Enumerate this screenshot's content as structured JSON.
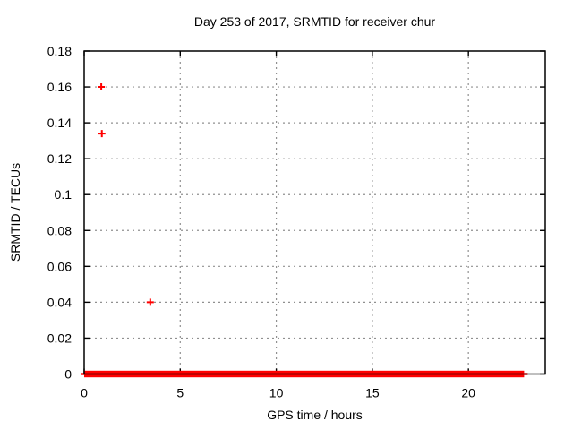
{
  "chart_data": {
    "type": "scatter",
    "title": "Day 253 of 2017, SRMTID for receiver chur",
    "xlabel": "GPS time / hours",
    "ylabel": "SRMTID / TECUs",
    "xlim": [
      0,
      24
    ],
    "ylim": [
      0,
      0.18
    ],
    "xticks": [
      {
        "value": 0,
        "label": "0"
      },
      {
        "value": 5,
        "label": "5"
      },
      {
        "value": 10,
        "label": "10"
      },
      {
        "value": 15,
        "label": "15"
      },
      {
        "value": 20,
        "label": "20"
      }
    ],
    "yticks": [
      {
        "value": 0,
        "label": "0"
      },
      {
        "value": 0.02,
        "label": "0.02"
      },
      {
        "value": 0.04,
        "label": "0.04"
      },
      {
        "value": 0.06,
        "label": "0.06"
      },
      {
        "value": 0.08,
        "label": "0.08"
      },
      {
        "value": 0.1,
        "label": "0.1"
      },
      {
        "value": 0.12,
        "label": "0.12"
      },
      {
        "value": 0.14,
        "label": "0.14"
      },
      {
        "value": 0.16,
        "label": "0.16"
      },
      {
        "value": 0.18,
        "label": "0.18"
      }
    ],
    "grid": true,
    "legend": "none",
    "marker": "plus",
    "colors": {
      "marker": "#ff0000",
      "grid": "#909090",
      "axis": "#000000",
      "background": "#ffffff"
    },
    "series": [
      {
        "name": "SRMTID",
        "outlier_points": [
          {
            "x": 0.89,
            "y": 0.16
          },
          {
            "x": 0.92,
            "y": 0.134
          },
          {
            "x": 3.44,
            "y": 0.04
          }
        ],
        "zero_band": {
          "y": 0,
          "x_start": 0,
          "x_end": 22.9,
          "description": "dense overlapping plus markers at y=0 forming a thick red band along the x-axis"
        }
      }
    ]
  }
}
